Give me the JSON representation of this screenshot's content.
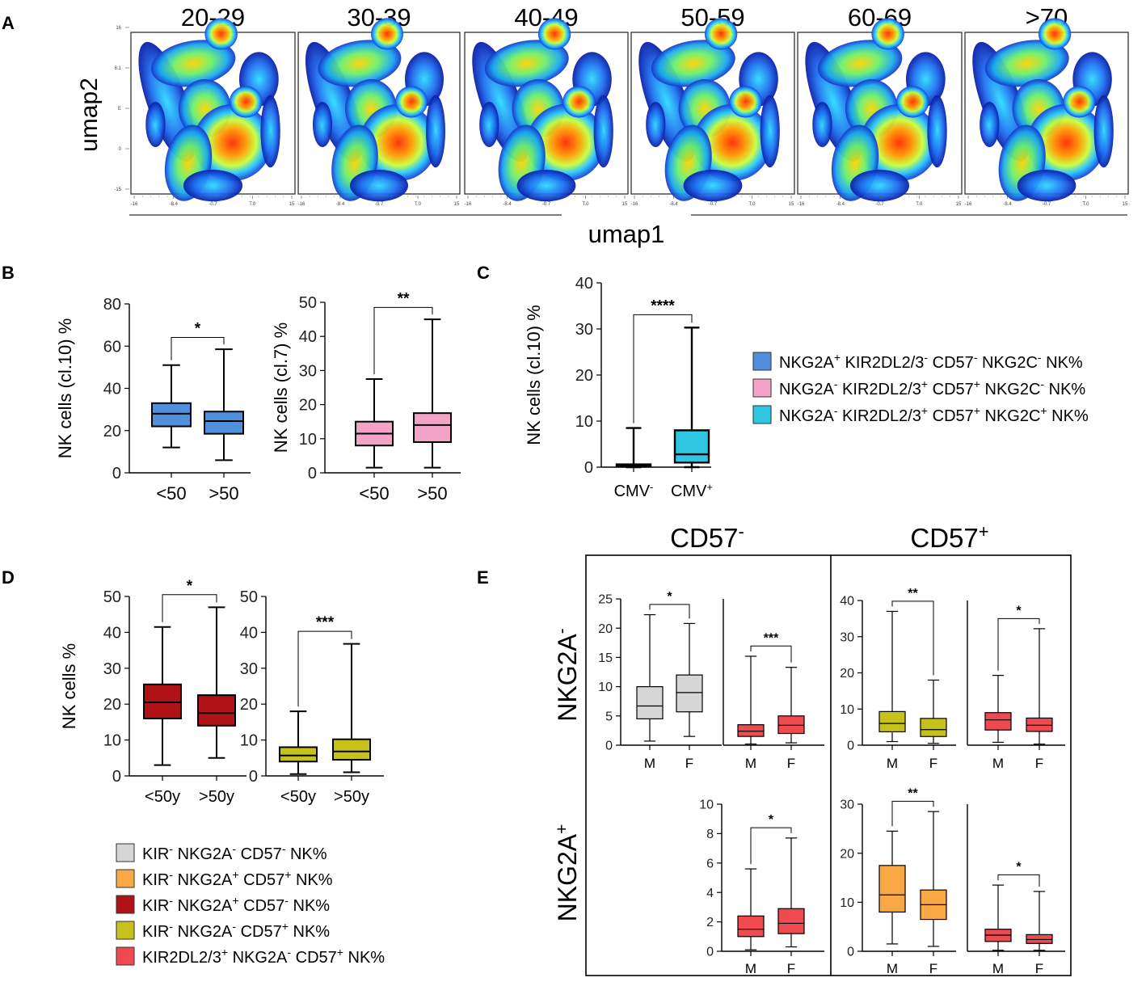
{
  "colors": {
    "blue": "#4f8fdc",
    "pink": "#f4a3c8",
    "cyan": "#2ec6e0",
    "grey": "#d6d6d6",
    "orange": "#f8a946",
    "darkred": "#b01315",
    "olive": "#c7c21b",
    "red": "#ee4a4f"
  },
  "panel_a": {
    "letter": "A",
    "titles": [
      "20-29",
      "30-39",
      "40-49",
      "50-59",
      "60-69",
      ">70"
    ],
    "ylabel": "umap2",
    "xlabel": "umap1",
    "x_ticks": [
      "-16",
      "-8.4",
      "-0.7",
      "T.0",
      "15"
    ],
    "y_ticks": [
      "16",
      "8.1",
      "E",
      "0",
      "-15"
    ]
  },
  "panel_b": {
    "letter": "B"
  },
  "panel_c": {
    "letter": "C"
  },
  "panel_d": {
    "letter": "D"
  },
  "panel_e": {
    "letter": "E",
    "col_headers": [
      "CD57",
      "CD57"
    ],
    "col_sups": [
      "-",
      "+"
    ],
    "row_headers": [
      "NKG2A",
      "NKG2A"
    ],
    "row_sups": [
      "-",
      "+"
    ]
  },
  "legend_bc": [
    {
      "color": "#4f8fdc",
      "parts": [
        [
          "NKG2A",
          ""
        ],
        [
          "+",
          ""
        ],
        [
          " KIR2DL2/3",
          ""
        ],
        [
          "-",
          ""
        ],
        [
          " CD57",
          ""
        ],
        [
          "-",
          ""
        ],
        [
          " NKG2C",
          ""
        ],
        [
          "-",
          ""
        ],
        [
          " NK%",
          ""
        ]
      ]
    },
    {
      "color": "#f4a3c8",
      "parts": [
        [
          "NKG2A",
          ""
        ],
        [
          "-",
          ""
        ],
        [
          " KIR2DL2/3",
          ""
        ],
        [
          "+",
          ""
        ],
        [
          " CD57",
          ""
        ],
        [
          "+",
          ""
        ],
        [
          " NKG2C",
          ""
        ],
        [
          "-",
          ""
        ],
        [
          " NK%",
          ""
        ]
      ]
    },
    {
      "color": "#2ec6e0",
      "parts": [
        [
          "NKG2A",
          ""
        ],
        [
          "-",
          ""
        ],
        [
          " KIR2DL2/3",
          ""
        ],
        [
          "+",
          ""
        ],
        [
          " CD57",
          ""
        ],
        [
          "+",
          ""
        ],
        [
          " NKG2C",
          ""
        ],
        [
          "+",
          ""
        ],
        [
          " NK%",
          ""
        ]
      ]
    }
  ],
  "legend_de": [
    {
      "color": "#d6d6d6",
      "parts": [
        [
          "KIR",
          ""
        ],
        [
          "-",
          ""
        ],
        [
          " NKG2A",
          ""
        ],
        [
          "-",
          ""
        ],
        [
          " CD57",
          ""
        ],
        [
          "-",
          ""
        ],
        [
          " NK%",
          ""
        ]
      ]
    },
    {
      "color": "#f8a946",
      "parts": [
        [
          "KIR",
          ""
        ],
        [
          "-",
          ""
        ],
        [
          " NKG2A",
          ""
        ],
        [
          "+",
          ""
        ],
        [
          " CD57",
          ""
        ],
        [
          "+",
          ""
        ],
        [
          " NK%",
          ""
        ]
      ]
    },
    {
      "color": "#b01315",
      "parts": [
        [
          "KIR",
          ""
        ],
        [
          "-",
          ""
        ],
        [
          " NKG2A",
          ""
        ],
        [
          "+",
          ""
        ],
        [
          " CD57",
          ""
        ],
        [
          "-",
          ""
        ],
        [
          " NK%",
          ""
        ]
      ]
    },
    {
      "color": "#c7c21b",
      "parts": [
        [
          "KIR",
          ""
        ],
        [
          "-",
          ""
        ],
        [
          " NKG2A",
          ""
        ],
        [
          "-",
          ""
        ],
        [
          " CD57",
          ""
        ],
        [
          "+",
          ""
        ],
        [
          " NK%",
          ""
        ]
      ]
    },
    {
      "color": "#ee4a4f",
      "parts": [
        [
          "KIR2DL2/3",
          ""
        ],
        [
          "+",
          ""
        ],
        [
          " NKG2A",
          ""
        ],
        [
          "-",
          ""
        ],
        [
          " CD57",
          ""
        ],
        [
          "+",
          ""
        ],
        [
          " NK%",
          ""
        ]
      ]
    }
  ],
  "chart_data": [
    {
      "id": "B1",
      "type": "box",
      "ylabel": "NK cells (cl.10) %",
      "ylim": [
        0,
        80
      ],
      "yticks": [
        0,
        20,
        40,
        60,
        80
      ],
      "categories": [
        "<50",
        ">50"
      ],
      "color": "#4f8fdc",
      "boxes": [
        {
          "min": 12,
          "q1": 22,
          "median": 28,
          "q3": 33,
          "max": 51
        },
        {
          "min": 6,
          "q1": 18.5,
          "median": 24.5,
          "q3": 29,
          "max": 58.5
        }
      ],
      "sig": "*"
    },
    {
      "id": "B2",
      "type": "box",
      "ylabel": "NK cells (cl.7) %",
      "ylim": [
        0,
        50
      ],
      "yticks": [
        0,
        10,
        20,
        30,
        40,
        50
      ],
      "categories": [
        "<50",
        ">50"
      ],
      "color": "#f4a3c8",
      "boxes": [
        {
          "min": 1.5,
          "q1": 8,
          "median": 11.5,
          "q3": 15,
          "max": 27.5
        },
        {
          "min": 1.5,
          "q1": 9,
          "median": 14,
          "q3": 17.5,
          "max": 45
        }
      ],
      "sig": "**"
    },
    {
      "id": "C",
      "type": "box",
      "ylabel": "NK cells (cl.10) %",
      "ylim": [
        0,
        40
      ],
      "yticks": [
        0,
        10,
        20,
        30,
        40
      ],
      "categories": [
        "CMV",
        "CMV"
      ],
      "cat_sups": [
        "-",
        "+"
      ],
      "color": "#2ec6e0",
      "boxes": [
        {
          "min": 0,
          "q1": 0.2,
          "median": 0.4,
          "q3": 0.6,
          "max": 8.5
        },
        {
          "min": 0,
          "q1": 1,
          "median": 2.8,
          "q3": 8,
          "max": 30.3
        }
      ],
      "sig": "****"
    },
    {
      "id": "D1",
      "type": "box",
      "ylabel": "NK cells  %",
      "ylim": [
        0,
        50
      ],
      "yticks": [
        0,
        10,
        20,
        30,
        40,
        50
      ],
      "categories": [
        "<50y",
        ">50y"
      ],
      "color": "#b01315",
      "boxes": [
        {
          "min": 3,
          "q1": 16,
          "median": 20.5,
          "q3": 25.5,
          "max": 41.5
        },
        {
          "min": 5,
          "q1": 14,
          "median": 17.5,
          "q3": 22.5,
          "max": 47
        }
      ],
      "sig": "*"
    },
    {
      "id": "D2",
      "type": "box",
      "ylabel": "",
      "ylim": [
        0,
        50
      ],
      "yticks": [
        0,
        10,
        20,
        30,
        40,
        50
      ],
      "categories": [
        "<50y",
        ">50y"
      ],
      "color": "#c7c21b",
      "boxes": [
        {
          "min": 0.5,
          "q1": 4,
          "median": 5.7,
          "q3": 8,
          "max": 18
        },
        {
          "min": 1,
          "q1": 4.5,
          "median": 6.8,
          "q3": 10.2,
          "max": 36.8
        }
      ],
      "sig": "***"
    },
    {
      "id": "E1",
      "type": "box",
      "ylabel": "",
      "ylim": [
        0,
        25
      ],
      "yticks": [
        0,
        5,
        10,
        15,
        20,
        25
      ],
      "categories": [
        "M",
        "F"
      ],
      "color": "#d6d6d6",
      "boxes": [
        {
          "min": 0.7,
          "q1": 4.5,
          "median": 6.7,
          "q3": 10,
          "max": 22.3
        },
        {
          "min": 1.5,
          "q1": 5.7,
          "median": 9,
          "q3": 12,
          "max": 20.8
        }
      ],
      "sig": "*"
    },
    {
      "id": "E2",
      "type": "box",
      "ylabel": "",
      "ylim": [
        0,
        25
      ],
      "yticks": [],
      "categories": [
        "M",
        "F"
      ],
      "color": "#ee4a4f",
      "boxes": [
        {
          "min": 0.2,
          "q1": 1.5,
          "median": 2.4,
          "q3": 3.5,
          "max": 15.2
        },
        {
          "min": 0.4,
          "q1": 2,
          "median": 3.4,
          "q3": 5,
          "max": 13.3
        }
      ],
      "sig": "***"
    },
    {
      "id": "E3",
      "type": "box",
      "ylabel": "",
      "ylim": [
        0,
        40
      ],
      "yticks": [
        0,
        10,
        20,
        30,
        40
      ],
      "categories": [
        "M",
        "F"
      ],
      "color": "#c7c21b",
      "boxes": [
        {
          "min": 1,
          "q1": 3.7,
          "median": 6,
          "q3": 9.3,
          "max": 37
        },
        {
          "min": 0.5,
          "q1": 2.4,
          "median": 4.3,
          "q3": 7.4,
          "max": 18
        }
      ],
      "sig": "**"
    },
    {
      "id": "E4",
      "type": "box",
      "ylabel": "",
      "ylim": [
        0,
        40
      ],
      "yticks": [],
      "categories": [
        "M",
        "F"
      ],
      "color": "#ee4a4f",
      "boxes": [
        {
          "min": 0.8,
          "q1": 4.2,
          "median": 7,
          "q3": 9,
          "max": 19.3
        },
        {
          "min": 0.3,
          "q1": 3.8,
          "median": 5.5,
          "q3": 7.5,
          "max": 32.2
        }
      ],
      "sig": "*"
    },
    {
      "id": "E5",
      "type": "box",
      "ylabel": "",
      "ylim": [
        0,
        10
      ],
      "yticks": [
        0,
        2,
        4,
        6,
        8,
        10
      ],
      "categories": [
        "M",
        "F"
      ],
      "color": "#ee4a4f",
      "boxes": [
        {
          "min": 0.1,
          "q1": 1,
          "median": 1.5,
          "q3": 2.4,
          "max": 5.6
        },
        {
          "min": 0.3,
          "q1": 1.2,
          "median": 1.9,
          "q3": 2.9,
          "max": 7.7
        }
      ],
      "sig": "*"
    },
    {
      "id": "E6",
      "type": "box",
      "ylabel": "",
      "ylim": [
        0,
        30
      ],
      "yticks": [
        0,
        10,
        20,
        30
      ],
      "categories": [
        "M",
        "F"
      ],
      "color": "#f8a946",
      "boxes": [
        {
          "min": 1.5,
          "q1": 8,
          "median": 11.5,
          "q3": 17.5,
          "max": 24.5
        },
        {
          "min": 1,
          "q1": 6.5,
          "median": 9.5,
          "q3": 12.5,
          "max": 28.5
        }
      ],
      "sig": "**"
    },
    {
      "id": "E7",
      "type": "box",
      "ylabel": "",
      "ylim": [
        0,
        30
      ],
      "yticks": [],
      "categories": [
        "M",
        "F"
      ],
      "color": "#ee4a4f",
      "boxes": [
        {
          "min": 0.2,
          "q1": 2,
          "median": 3.3,
          "q3": 4.5,
          "max": 13.5
        },
        {
          "min": 0.2,
          "q1": 1.6,
          "median": 2.4,
          "q3": 3.4,
          "max": 12.2
        }
      ],
      "sig": "*"
    }
  ]
}
